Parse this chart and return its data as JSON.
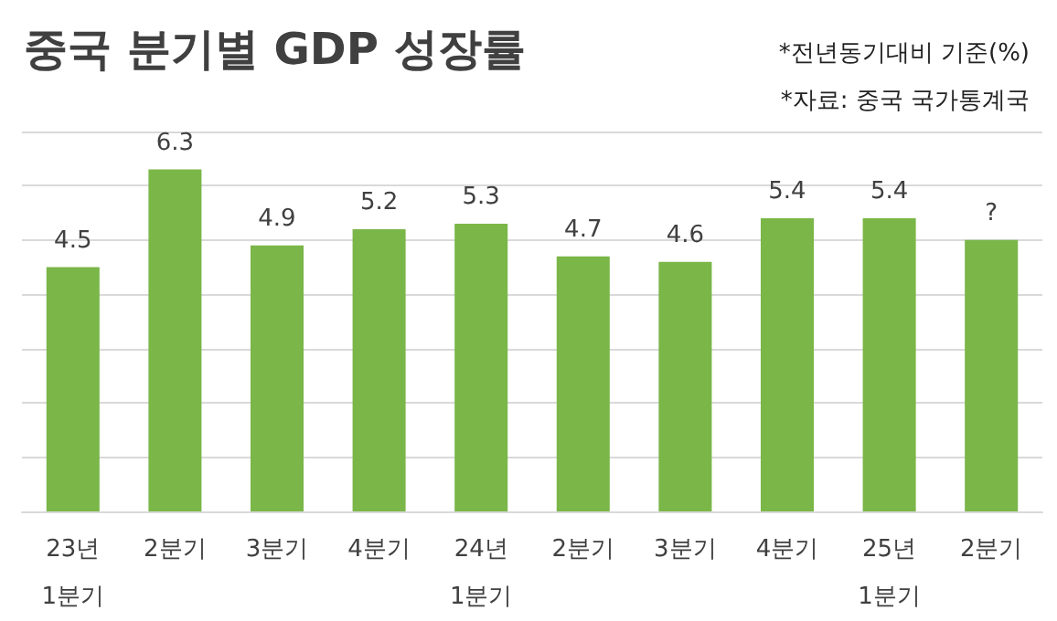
{
  "chart_data": {
    "type": "bar",
    "title": "중국 분기별 GDP 성장률",
    "annotations": [
      "*전년동기대비 기준(%)",
      "*자료: 중국 국가통계국"
    ],
    "categories": [
      "23년\n1분기",
      "2분기",
      "3분기",
      "4분기",
      "24년\n1분기",
      "2분기",
      "3분기",
      "4분기",
      "25년\n1분기",
      "2분기"
    ],
    "values": [
      4.5,
      6.3,
      4.9,
      5.2,
      5.3,
      4.7,
      4.6,
      5.4,
      5.4,
      5.0
    ],
    "value_labels": [
      "4.5",
      "6.3",
      "4.9",
      "5.2",
      "5.3",
      "4.7",
      "4.6",
      "5.4",
      "5.4",
      "?"
    ],
    "color": "#7ab648",
    "ylim": [
      0,
      7
    ],
    "yticks": [
      {
        "value": 0,
        "label": null
      },
      {
        "value": 1,
        "label": null
      },
      {
        "value": 2,
        "label": null
      },
      {
        "value": 3,
        "label": null
      },
      {
        "value": 4,
        "label": null
      },
      {
        "value": 5,
        "label": null
      },
      {
        "value": 6,
        "label": null
      },
      {
        "value": 7,
        "label": null
      }
    ],
    "grid": "y",
    "tick_labels": "x"
  }
}
